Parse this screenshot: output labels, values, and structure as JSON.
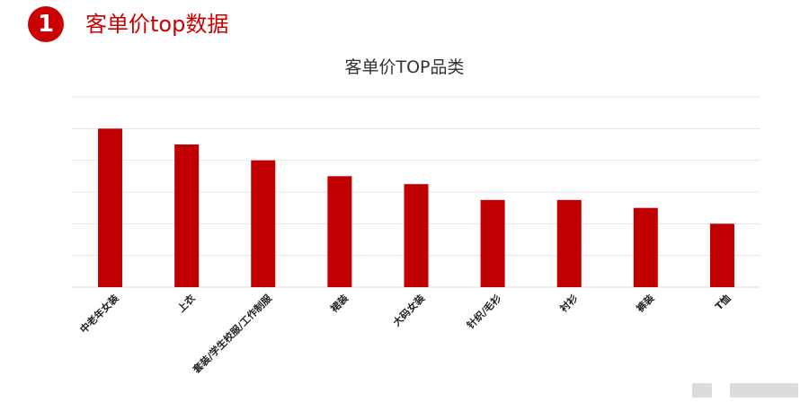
{
  "header": {
    "badge_number": "1",
    "title": "客单价top数据"
  },
  "colors": {
    "accent": "#cc0000",
    "bar": "#c00000",
    "gridline": "#e6e6e6"
  },
  "chart_data": {
    "type": "bar",
    "title": "客单价TOP品类",
    "xlabel": "",
    "ylabel": "",
    "categories": [
      "中老年女装",
      "上衣",
      "套装/学生校服/工作制服",
      "裙装",
      "大码女装",
      "针织/毛衫",
      "衬衫",
      "裤装",
      "T恤"
    ],
    "values": [
      100,
      90,
      80,
      70,
      65,
      55,
      55,
      50,
      40
    ],
    "ylim": [
      0,
      120
    ],
    "grid": true,
    "y_tick_labels_shown": false,
    "legend": "none"
  }
}
